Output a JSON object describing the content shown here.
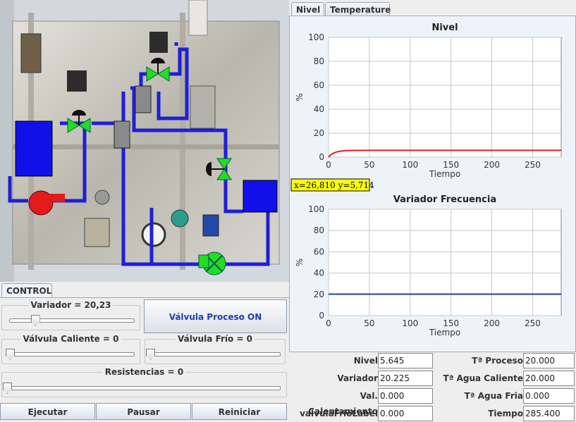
{
  "tabs": {
    "right": [
      {
        "label": "Nivel"
      },
      {
        "label": "Temperature"
      }
    ],
    "control": "CONTROL"
  },
  "charts": [
    {
      "title": "Nivel",
      "xlabel": "Tiempo",
      "ylabel": "%",
      "yticks": [
        "0",
        "20",
        "40",
        "60",
        "80",
        "100"
      ],
      "xticks": [
        "0",
        "50",
        "100",
        "150",
        "200",
        "250"
      ]
    },
    {
      "title": "Variador Frecuencia",
      "xlabel": "Tiempo",
      "ylabel": "%",
      "yticks": [
        "0",
        "20",
        "40",
        "60",
        "80",
        "100"
      ],
      "xticks": [
        "0",
        "50",
        "100",
        "150",
        "200",
        "250"
      ]
    }
  ],
  "chart_data": [
    {
      "type": "line",
      "title": "Nivel",
      "xlabel": "Tiempo",
      "ylabel": "%",
      "xlim": [
        0,
        285
      ],
      "ylim": [
        0,
        100
      ],
      "grid": true,
      "series": [
        {
          "color": "#e02020",
          "x": [
            0,
            2,
            5,
            10,
            15,
            20,
            30,
            50,
            100,
            150,
            200,
            250,
            285
          ],
          "values": [
            0,
            1.5,
            3.0,
            4.3,
            5.0,
            5.4,
            5.6,
            5.64,
            5.645,
            5.645,
            5.645,
            5.645,
            5.645
          ]
        }
      ],
      "annotation": "x=26,810 y=5,714"
    },
    {
      "type": "line",
      "title": "Variador Frecuencia",
      "xlabel": "Tiempo",
      "ylabel": "%",
      "xlim": [
        0,
        285
      ],
      "ylim": [
        0,
        100
      ],
      "grid": true,
      "series": [
        {
          "color": "#1f3fa8",
          "x": [
            0,
            285
          ],
          "values": [
            20.225,
            20.225
          ]
        }
      ]
    }
  ],
  "controls": {
    "variador": {
      "label": "Variador = 20,23",
      "value": 20.23
    },
    "valvula_proceso_button": "Válvula Proceso ON",
    "valvula_caliente": {
      "label": "Válvula Caliente = 0",
      "value": 0
    },
    "valvula_frio": {
      "label": "Válvula Frío = 0",
      "value": 0
    },
    "resistencias": {
      "label": "Resistencias = 0",
      "value": 0
    },
    "buttons": {
      "ejecutar": "Ejecutar",
      "pausar": "Pausar",
      "reiniciar": "Reiniciar"
    }
  },
  "readouts": {
    "left": [
      {
        "label": "Nivel",
        "value": "5.645"
      },
      {
        "label": "Variador",
        "value": "20.225"
      },
      {
        "label": "Val. Calentamiento",
        "value": "0.000"
      },
      {
        "label": "valvulaFrioLabel",
        "value": "0.000"
      }
    ],
    "right": [
      {
        "label": "Tª Proceso",
        "value": "20.000"
      },
      {
        "label": "Tª Agua Caliente",
        "value": "20.000"
      },
      {
        "label": "Tª Agua Fria",
        "value": "0.000"
      },
      {
        "label": "Tiempo",
        "value": "285.400"
      }
    ]
  },
  "colors": {
    "tank": "#1010e8",
    "pipe": "#1f1fd6",
    "pump_red": "#e21b1b",
    "pump_green": "#22dd22",
    "valve": "#22dd22",
    "nivel_line": "#e02020",
    "variador_line": "#1f3fa8",
    "annotation_bg": "#ffff00"
  }
}
